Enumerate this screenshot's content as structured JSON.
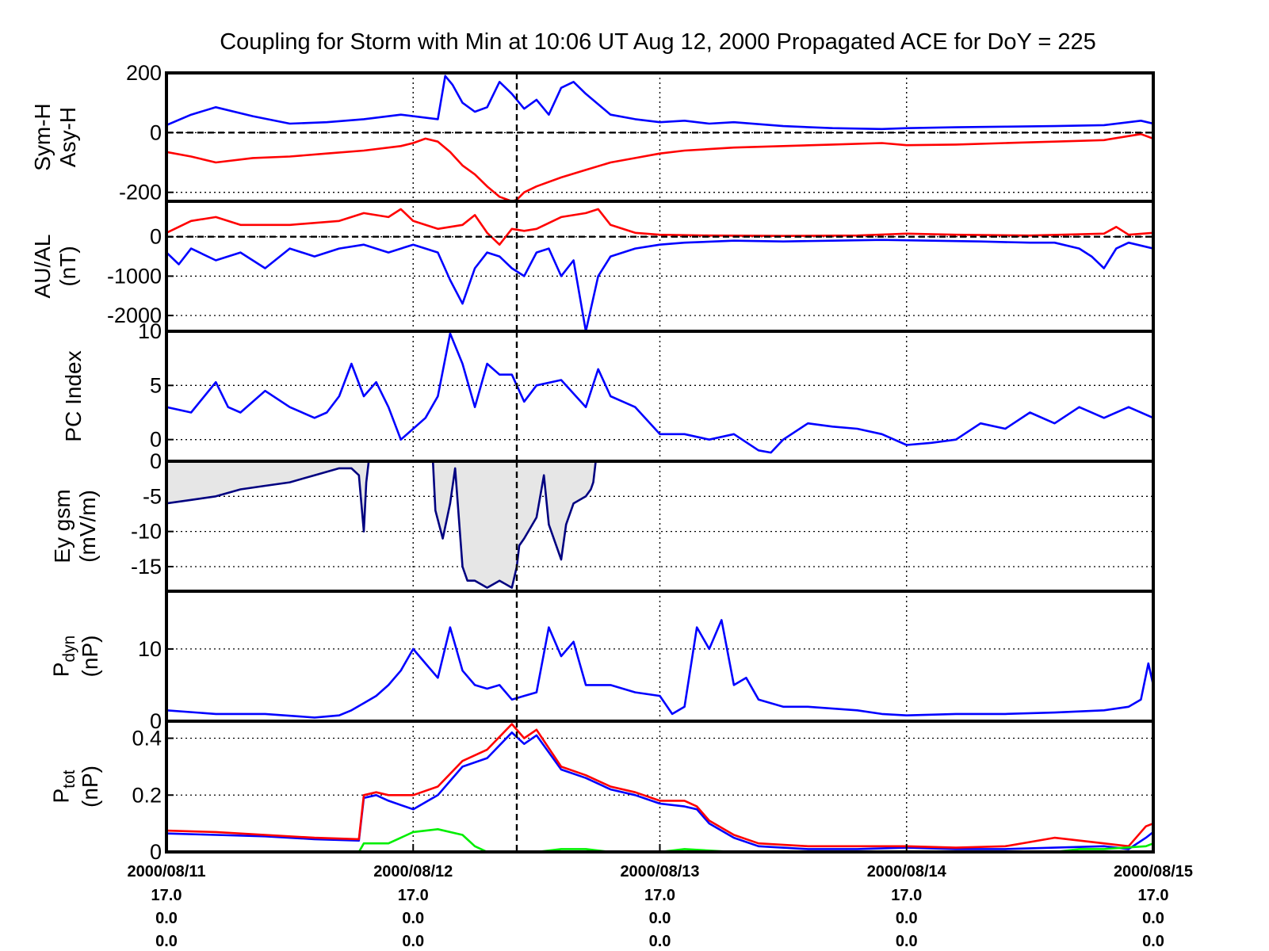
{
  "title": "Coupling for Storm with Min at 10:06 UT Aug 12, 2000  Propagated ACE for DoY = 225",
  "colors": {
    "blue": "#0000ff",
    "red": "#ff0000",
    "green": "#00ee00",
    "navy": "#000080",
    "fill": "#e6e6e6"
  },
  "x_axis": {
    "range_days": [
      0,
      4
    ],
    "storm_min_day": 1.42,
    "ticks": [
      {
        "day": 0,
        "date": "2000/08/11",
        "l2": "17.0",
        "l3": "0.0",
        "l4": "0.0"
      },
      {
        "day": 1,
        "date": "2000/08/12",
        "l2": "17.0",
        "l3": "0.0",
        "l4": "0.0"
      },
      {
        "day": 2,
        "date": "2000/08/13",
        "l2": "17.0",
        "l3": "0.0",
        "l4": "0.0"
      },
      {
        "day": 3,
        "date": "2000/08/14",
        "l2": "17.0",
        "l3": "0.0",
        "l4": "0.0"
      },
      {
        "day": 4,
        "date": "2000/08/15",
        "l2": "17.0",
        "l3": "0.0",
        "l4": "0.0"
      }
    ]
  },
  "chart_data": [
    {
      "type": "line",
      "ylabel": [
        "Sym-H",
        "Asy-H"
      ],
      "ylim": [
        -230,
        200
      ],
      "yticks": [
        {
          "v": 200,
          "label": "200"
        },
        {
          "v": 0,
          "label": "0"
        },
        {
          "v": -200,
          "label": "-200"
        }
      ],
      "zero_line": true,
      "series": [
        {
          "color": "blue",
          "x": [
            0,
            0.1,
            0.2,
            0.35,
            0.5,
            0.65,
            0.8,
            0.95,
            1.1,
            1.13,
            1.16,
            1.2,
            1.25,
            1.3,
            1.35,
            1.4,
            1.45,
            1.5,
            1.55,
            1.6,
            1.65,
            1.7,
            1.8,
            1.9,
            2.0,
            2.1,
            2.2,
            2.3,
            2.5,
            2.7,
            2.9,
            3.0,
            3.2,
            3.4,
            3.6,
            3.8,
            3.95,
            4.0
          ],
          "y": [
            25,
            60,
            85,
            55,
            30,
            35,
            45,
            60,
            45,
            190,
            160,
            100,
            70,
            85,
            170,
            130,
            80,
            110,
            60,
            150,
            170,
            130,
            60,
            45,
            35,
            40,
            30,
            35,
            22,
            15,
            12,
            15,
            18,
            20,
            22,
            25,
            40,
            30
          ]
        },
        {
          "color": "red",
          "x": [
            0,
            0.1,
            0.2,
            0.35,
            0.5,
            0.65,
            0.8,
            0.95,
            1.0,
            1.05,
            1.1,
            1.15,
            1.2,
            1.25,
            1.3,
            1.35,
            1.4,
            1.42,
            1.45,
            1.5,
            1.6,
            1.7,
            1.8,
            1.9,
            2.0,
            2.1,
            2.2,
            2.3,
            2.5,
            2.7,
            2.9,
            3.0,
            3.2,
            3.4,
            3.6,
            3.8,
            3.95,
            4.0
          ],
          "y": [
            -65,
            -80,
            -100,
            -85,
            -80,
            -70,
            -60,
            -45,
            -35,
            -20,
            -30,
            -65,
            -110,
            -140,
            -180,
            -215,
            -230,
            -225,
            -200,
            -180,
            -150,
            -125,
            -100,
            -85,
            -70,
            -60,
            -55,
            -50,
            -45,
            -40,
            -35,
            -42,
            -40,
            -35,
            -30,
            -25,
            -5,
            -20
          ]
        }
      ]
    },
    {
      "type": "line",
      "ylabel": [
        "AU/AL",
        "(nT)"
      ],
      "ylim": [
        -2400,
        900
      ],
      "yticks": [
        {
          "v": 0,
          "label": "0"
        },
        {
          "v": -1000,
          "label": "-1000"
        },
        {
          "v": -2000,
          "label": "-2000"
        }
      ],
      "zero_line": true,
      "series": [
        {
          "color": "red",
          "x": [
            0,
            0.1,
            0.2,
            0.3,
            0.5,
            0.7,
            0.8,
            0.9,
            0.95,
            1.0,
            1.1,
            1.2,
            1.25,
            1.3,
            1.35,
            1.4,
            1.45,
            1.5,
            1.6,
            1.7,
            1.75,
            1.8,
            1.9,
            2.0,
            2.2,
            2.5,
            2.8,
            3.0,
            3.2,
            3.5,
            3.8,
            3.85,
            3.9,
            4.0
          ],
          "y": [
            100,
            400,
            500,
            300,
            300,
            400,
            600,
            500,
            700,
            400,
            200,
            300,
            550,
            100,
            -200,
            200,
            150,
            200,
            500,
            600,
            700,
            300,
            100,
            50,
            30,
            20,
            30,
            80,
            50,
            30,
            80,
            250,
            50,
            100
          ]
        },
        {
          "color": "blue",
          "x": [
            0,
            0.05,
            0.1,
            0.2,
            0.3,
            0.4,
            0.5,
            0.6,
            0.7,
            0.8,
            0.9,
            1.0,
            1.05,
            1.1,
            1.15,
            1.2,
            1.25,
            1.3,
            1.35,
            1.4,
            1.45,
            1.5,
            1.55,
            1.6,
            1.65,
            1.7,
            1.75,
            1.8,
            1.9,
            2.0,
            2.1,
            2.3,
            2.5,
            2.7,
            2.9,
            3.1,
            3.3,
            3.5,
            3.6,
            3.7,
            3.75,
            3.8,
            3.85,
            3.9,
            4.0
          ],
          "y": [
            -400,
            -700,
            -300,
            -600,
            -400,
            -800,
            -300,
            -500,
            -300,
            -200,
            -400,
            -200,
            -300,
            -400,
            -1100,
            -1700,
            -800,
            -400,
            -500,
            -800,
            -1000,
            -400,
            -300,
            -1000,
            -600,
            -2400,
            -1000,
            -500,
            -300,
            -200,
            -150,
            -100,
            -120,
            -100,
            -80,
            -100,
            -120,
            -150,
            -150,
            -300,
            -500,
            -800,
            -300,
            -150,
            -300
          ]
        }
      ]
    },
    {
      "type": "line",
      "ylabel": [
        "PC Index"
      ],
      "ylim": [
        -2,
        10
      ],
      "yticks": [
        {
          "v": 10,
          "label": "10"
        },
        {
          "v": 5,
          "label": "5"
        },
        {
          "v": 0,
          "label": "0"
        }
      ],
      "series": [
        {
          "color": "blue",
          "x": [
            0,
            0.1,
            0.2,
            0.25,
            0.3,
            0.4,
            0.5,
            0.6,
            0.65,
            0.7,
            0.75,
            0.8,
            0.85,
            0.9,
            0.95,
            1.0,
            1.05,
            1.1,
            1.15,
            1.2,
            1.25,
            1.3,
            1.35,
            1.4,
            1.45,
            1.5,
            1.6,
            1.7,
            1.75,
            1.8,
            1.85,
            1.9,
            2.0,
            2.1,
            2.2,
            2.3,
            2.4,
            2.45,
            2.5,
            2.6,
            2.7,
            2.8,
            2.9,
            3.0,
            3.1,
            3.2,
            3.3,
            3.4,
            3.5,
            3.6,
            3.7,
            3.8,
            3.9,
            4.0
          ],
          "y": [
            3,
            2.5,
            5.3,
            3,
            2.5,
            4.5,
            3,
            2,
            2.5,
            4,
            7,
            4,
            5.3,
            3,
            0,
            1,
            2,
            4,
            9.8,
            7,
            3,
            7,
            6,
            6,
            3.5,
            5,
            5.5,
            3,
            6.5,
            4,
            3.5,
            3,
            0.5,
            0.5,
            0,
            0.5,
            -1,
            -1.2,
            0,
            1.5,
            1.2,
            1,
            0.5,
            -0.5,
            -0.3,
            0,
            1.5,
            1,
            2.5,
            1.5,
            3,
            2,
            3,
            2
          ]
        }
      ]
    },
    {
      "type": "area",
      "ylabel": [
        "Ey gsm",
        "(mV/m)"
      ],
      "ylim": [
        -18.5,
        0
      ],
      "yticks": [
        {
          "v": 0,
          "label": "0"
        },
        {
          "v": -5,
          "label": "-5"
        },
        {
          "v": -10,
          "label": "-10"
        },
        {
          "v": -15,
          "label": "-15"
        }
      ],
      "series": [
        {
          "color": "navy",
          "fill": true,
          "x": [
            0,
            0.1,
            0.2,
            0.3,
            0.4,
            0.5,
            0.6,
            0.7,
            0.75,
            0.78,
            0.8,
            0.81,
            0.82,
            1.08,
            1.09,
            1.12,
            1.15,
            1.17,
            1.2,
            1.22,
            1.25,
            1.3,
            1.35,
            1.4,
            1.42,
            1.43,
            1.45,
            1.5,
            1.52,
            1.53,
            1.55,
            1.6,
            1.62,
            1.65,
            1.7,
            1.72,
            1.73,
            1.74
          ],
          "y": [
            -6,
            -5.5,
            -5,
            -4,
            -3.5,
            -3,
            -2,
            -1,
            -1,
            -2,
            -10,
            -3,
            0,
            0,
            -7,
            -11,
            -6,
            -1,
            -15,
            -17,
            -17,
            -18,
            -17,
            -18,
            -15,
            -12,
            -11,
            -8,
            -4,
            -2,
            -9,
            -14,
            -9,
            -6,
            -5,
            -4,
            -3,
            0
          ]
        }
      ]
    },
    {
      "type": "line",
      "ylabel": [
        "P_dyn",
        "(nP)"
      ],
      "ylabel_parts": {
        "base": "P",
        "sub": "dyn",
        "unit": "(nP)"
      },
      "ylim": [
        0,
        18
      ],
      "yticks": [
        {
          "v": 10,
          "label": "10"
        },
        {
          "v": 0,
          "label": "0"
        }
      ],
      "series": [
        {
          "color": "blue",
          "x": [
            0,
            0.2,
            0.4,
            0.6,
            0.7,
            0.75,
            0.8,
            0.85,
            0.9,
            0.95,
            1.0,
            1.05,
            1.1,
            1.15,
            1.2,
            1.25,
            1.3,
            1.35,
            1.4,
            1.45,
            1.5,
            1.55,
            1.6,
            1.65,
            1.7,
            1.8,
            1.9,
            2.0,
            2.05,
            2.1,
            2.15,
            2.2,
            2.25,
            2.3,
            2.35,
            2.4,
            2.5,
            2.6,
            2.8,
            2.9,
            3.0,
            3.2,
            3.4,
            3.6,
            3.8,
            3.9,
            3.95,
            3.98,
            4.0
          ],
          "y": [
            1.5,
            1,
            1,
            0.5,
            0.8,
            1.5,
            2.5,
            3.5,
            5,
            7,
            10,
            8,
            6,
            13,
            7,
            5,
            4.5,
            5,
            3,
            3.5,
            4,
            13,
            9,
            11,
            5,
            5,
            4,
            3.5,
            1,
            2,
            13,
            10,
            14,
            5,
            6,
            3,
            2,
            2,
            1.5,
            1,
            0.8,
            1,
            1,
            1.2,
            1.5,
            2,
            3,
            8,
            5
          ]
        }
      ]
    },
    {
      "type": "line",
      "ylabel": [
        "P_tot",
        "(nP)"
      ],
      "ylabel_parts": {
        "base": "P",
        "sub": "tot",
        "unit": "(nP)"
      },
      "ylim": [
        0,
        0.46
      ],
      "yticks": [
        {
          "v": 0.4,
          "label": "0.4"
        },
        {
          "v": 0.2,
          "label": "0.2"
        },
        {
          "v": 0,
          "label": "0"
        }
      ],
      "series": [
        {
          "color": "blue",
          "x": [
            0,
            0.2,
            0.4,
            0.6,
            0.78,
            0.8,
            0.85,
            0.9,
            1.0,
            1.1,
            1.2,
            1.3,
            1.4,
            1.45,
            1.5,
            1.6,
            1.7,
            1.8,
            1.9,
            2.0,
            2.1,
            2.15,
            2.2,
            2.3,
            2.4,
            2.6,
            2.8,
            3.0,
            3.2,
            3.4,
            3.6,
            3.8,
            3.9,
            3.97,
            4.0
          ],
          "y": [
            0.065,
            0.06,
            0.055,
            0.045,
            0.04,
            0.19,
            0.2,
            0.18,
            0.15,
            0.2,
            0.3,
            0.33,
            0.42,
            0.38,
            0.41,
            0.29,
            0.26,
            0.22,
            0.2,
            0.17,
            0.16,
            0.15,
            0.1,
            0.05,
            0.02,
            0.01,
            0.01,
            0.015,
            0.01,
            0.01,
            0.015,
            0.02,
            0.01,
            0.05,
            0.07
          ]
        },
        {
          "color": "red",
          "x": [
            0,
            0.2,
            0.4,
            0.6,
            0.78,
            0.8,
            0.85,
            0.9,
            1.0,
            1.1,
            1.2,
            1.3,
            1.4,
            1.45,
            1.5,
            1.6,
            1.7,
            1.8,
            1.9,
            2.0,
            2.1,
            2.15,
            2.2,
            2.3,
            2.4,
            2.6,
            2.8,
            3.0,
            3.2,
            3.4,
            3.6,
            3.8,
            3.9,
            3.97,
            4.0
          ],
          "y": [
            0.075,
            0.07,
            0.06,
            0.05,
            0.045,
            0.2,
            0.21,
            0.2,
            0.2,
            0.23,
            0.32,
            0.36,
            0.45,
            0.4,
            0.43,
            0.3,
            0.27,
            0.23,
            0.21,
            0.18,
            0.18,
            0.16,
            0.11,
            0.06,
            0.03,
            0.02,
            0.02,
            0.02,
            0.015,
            0.02,
            0.05,
            0.03,
            0.02,
            0.09,
            0.1
          ]
        },
        {
          "color": "green",
          "x": [
            0,
            0.78,
            0.8,
            0.9,
            1.0,
            1.1,
            1.2,
            1.25,
            1.3,
            1.4,
            1.5,
            1.6,
            1.7,
            1.8,
            2.0,
            2.1,
            2.3,
            3.0,
            3.6,
            3.7,
            3.8,
            3.97,
            4.0
          ],
          "y": [
            0,
            0,
            0.03,
            0.03,
            0.07,
            0.08,
            0.06,
            0.02,
            0,
            0,
            0,
            0.01,
            0.01,
            0,
            0,
            0.01,
            0,
            0,
            0,
            0.01,
            0.01,
            0.02,
            0.03
          ]
        }
      ]
    }
  ]
}
